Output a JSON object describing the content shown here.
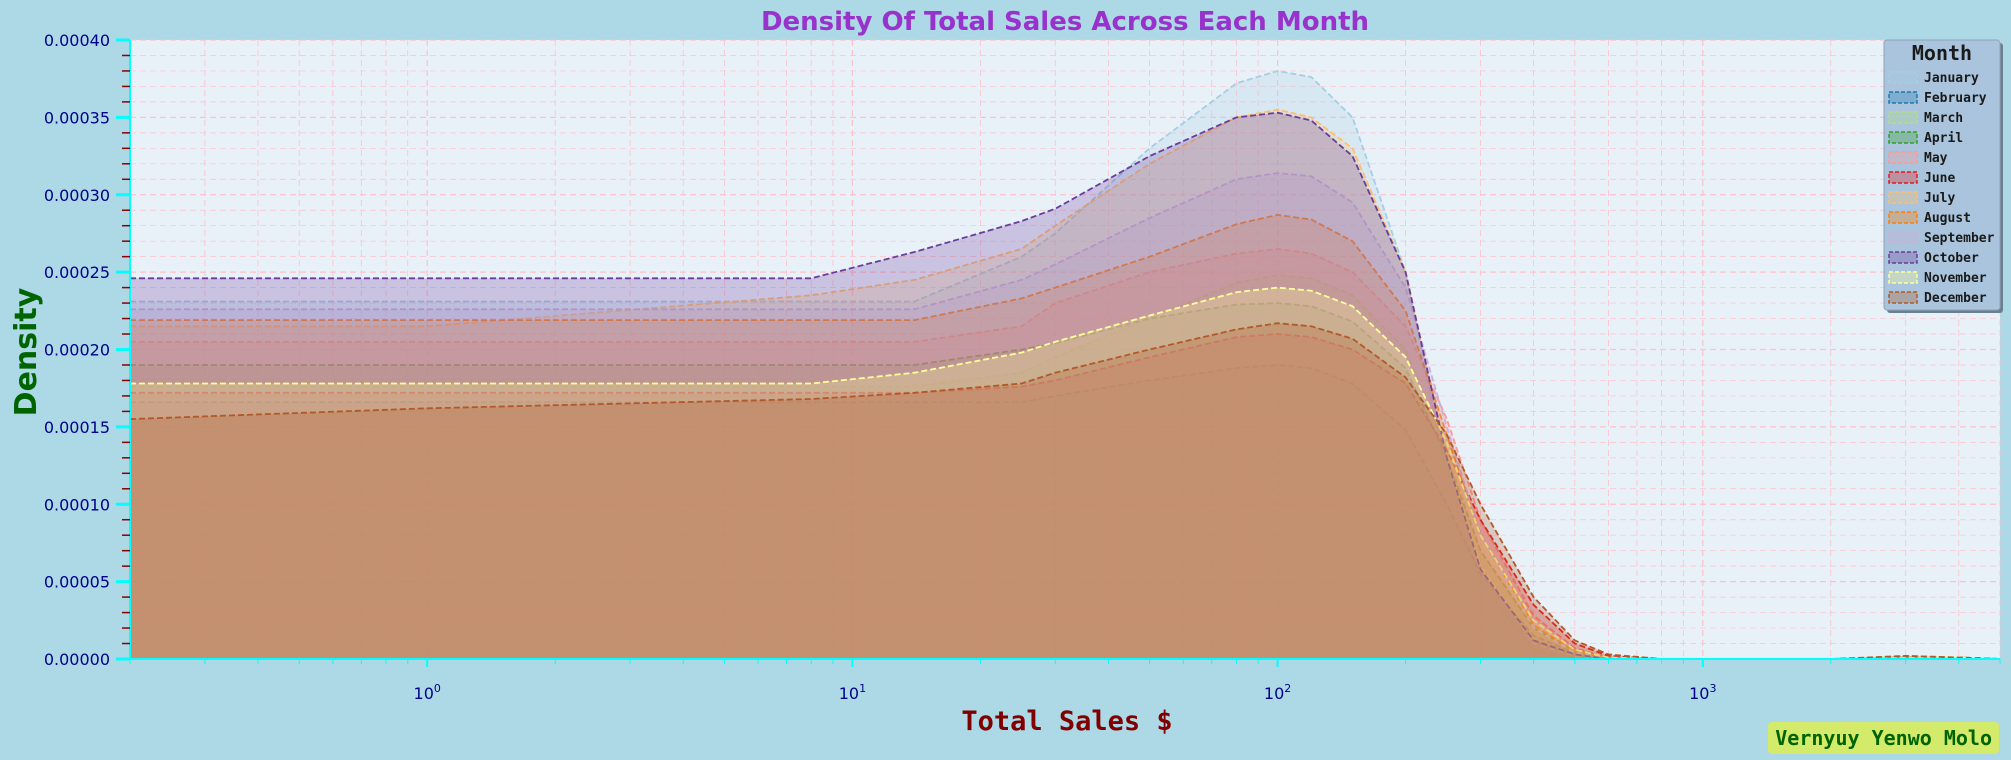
{
  "chart_data": {
    "type": "area",
    "title": "Density Of Total Sales Across Each Month",
    "xlabel": "Total Sales $",
    "ylabel": "Density",
    "x_scale": "log",
    "xlim": [
      0.2,
      5000
    ],
    "ylim": [
      0,
      0.0004
    ],
    "yticks": [
      "0.00000",
      "0.00005",
      "0.00010",
      "0.00015",
      "0.00020",
      "0.00025",
      "0.00030",
      "0.00035",
      "0.00040"
    ],
    "yticks_values": [
      0,
      5e-05,
      0.0001,
      0.00015,
      0.0002,
      0.00025,
      0.0003,
      0.00035,
      0.0004
    ],
    "xticks": [
      {
        "value": 1,
        "base": "10",
        "exp": "0"
      },
      {
        "value": 10,
        "base": "10",
        "exp": "1"
      },
      {
        "value": 100,
        "base": "10",
        "exp": "2"
      },
      {
        "value": 1000,
        "base": "10",
        "exp": "3"
      }
    ],
    "grid": true,
    "legend": {
      "title": "Month",
      "placement": "top-right"
    },
    "x": [
      0.2,
      1,
      8,
      14,
      25,
      30,
      50,
      80,
      100,
      120,
      150,
      200,
      250,
      300,
      400,
      500,
      600,
      800,
      1000,
      2000,
      3000,
      4000,
      5000
    ],
    "series": [
      {
        "name": "January",
        "color": "#a6cee3",
        "values": [
          0.000231,
          0.000231,
          0.000231,
          0.000231,
          0.00026,
          0.000275,
          0.00033,
          0.000372,
          0.00038,
          0.000376,
          0.00035,
          0.00025,
          0.00012,
          5e-05,
          5e-06,
          1e-06,
          0.0,
          0.0,
          0.0,
          0.0,
          1e-06,
          0.0,
          0.0
        ]
      },
      {
        "name": "February",
        "color": "#1f78b4",
        "values": [
          0.000166,
          0.000166,
          0.000166,
          0.000166,
          0.000166,
          0.00017,
          0.00018,
          0.000188,
          0.00019,
          0.000188,
          0.000178,
          0.000148,
          0.0001,
          5.5e-05,
          1.5e-05,
          4e-06,
          1e-06,
          0.0,
          0.0,
          0.0,
          1e-06,
          1e-06,
          0.0
        ]
      },
      {
        "name": "March",
        "color": "#b2df8a",
        "values": [
          0.000176,
          0.000176,
          0.000176,
          0.000176,
          0.000185,
          0.000195,
          0.00022,
          0.000243,
          0.000248,
          0.000246,
          0.000235,
          0.0002,
          0.000135,
          7e-05,
          2e-05,
          5e-06,
          1e-06,
          0.0,
          0.0,
          0.0,
          2e-06,
          1e-06,
          0.0
        ]
      },
      {
        "name": "April",
        "color": "#33a02c",
        "values": [
          0.00019,
          0.00019,
          0.00019,
          0.00019,
          0.0002,
          0.000204,
          0.00022,
          0.000229,
          0.00023,
          0.000228,
          0.000218,
          0.000188,
          0.00013,
          7e-05,
          2e-05,
          5e-06,
          1e-06,
          0.0,
          0.0,
          0.0,
          1e-06,
          1e-06,
          0.0
        ]
      },
      {
        "name": "May",
        "color": "#fb9a99",
        "values": [
          0.000205,
          0.000205,
          0.000205,
          0.000205,
          0.000215,
          0.00023,
          0.00025,
          0.000262,
          0.000265,
          0.000262,
          0.00025,
          0.000215,
          0.000155,
          9e-05,
          2.8e-05,
          7e-06,
          1e-06,
          0.0,
          0.0,
          0.0,
          1e-06,
          1e-06,
          0.0
        ]
      },
      {
        "name": "June",
        "color": "#e31a1c",
        "values": [
          0.000172,
          0.000172,
          0.000172,
          0.000172,
          0.000176,
          0.00018,
          0.000195,
          0.000208,
          0.00021,
          0.000208,
          0.0002,
          0.000178,
          0.000135,
          9e-05,
          3.5e-05,
          1e-05,
          2e-06,
          0.0,
          0.0,
          0.0,
          1e-06,
          1e-06,
          0.0
        ]
      },
      {
        "name": "July",
        "color": "#fdbf6f",
        "values": [
          0.000215,
          0.000215,
          0.000235,
          0.000245,
          0.000265,
          0.00028,
          0.00032,
          0.00035,
          0.000355,
          0.00035,
          0.00033,
          0.00025,
          0.00013,
          6e-05,
          1e-05,
          2e-06,
          0.0,
          0.0,
          0.0,
          0.0,
          1e-06,
          0.0,
          0.0
        ]
      },
      {
        "name": "August",
        "color": "#ff7f00",
        "values": [
          0.000219,
          0.000219,
          0.000219,
          0.000219,
          0.000233,
          0.00024,
          0.00026,
          0.000281,
          0.000287,
          0.000284,
          0.00027,
          0.000225,
          0.000145,
          8e-05,
          2.2e-05,
          5e-06,
          1e-06,
          0.0,
          0.0,
          0.0,
          1e-06,
          1e-06,
          0.0
        ]
      },
      {
        "name": "September",
        "color": "#cab2d6",
        "values": [
          0.000226,
          0.000226,
          0.000226,
          0.000226,
          0.000245,
          0.000255,
          0.000285,
          0.00031,
          0.000314,
          0.000312,
          0.000295,
          0.00024,
          0.00015,
          8e-05,
          2e-05,
          4e-06,
          1e-06,
          0.0,
          0.0,
          0.0,
          1e-06,
          1e-06,
          0.0
        ]
      },
      {
        "name": "October",
        "color": "#6a3d9a",
        "values": [
          0.000246,
          0.000246,
          0.000246,
          0.000263,
          0.000283,
          0.000291,
          0.000325,
          0.00035,
          0.000353,
          0.000348,
          0.000325,
          0.00025,
          0.00013,
          5.8e-05,
          1.2e-05,
          3e-06,
          0.0,
          0.0,
          0.0,
          0.0,
          1e-06,
          0.0,
          0.0
        ]
      },
      {
        "name": "November",
        "color": "#ffff99",
        "values": [
          0.000178,
          0.000178,
          0.000178,
          0.000185,
          0.000198,
          0.000205,
          0.000222,
          0.000237,
          0.00024,
          0.000238,
          0.000228,
          0.000195,
          0.00014,
          8e-05,
          2.5e-05,
          6e-06,
          1e-06,
          0.0,
          0.0,
          0.0,
          1e-06,
          1e-06,
          0.0
        ]
      },
      {
        "name": "December",
        "color": "#b15928",
        "values": [
          0.000155,
          0.000162,
          0.000168,
          0.000172,
          0.000178,
          0.000185,
          0.0002,
          0.000213,
          0.000217,
          0.000215,
          0.000207,
          0.000182,
          0.000145,
          0.0001,
          4e-05,
          1.2e-05,
          3e-06,
          0.0,
          0.0,
          0.0,
          2e-06,
          1e-06,
          0.0
        ]
      }
    ],
    "colors": {
      "plot_bg": "#e8f0f8",
      "figure_bg": "#add8e6",
      "grid": "#ffc0cb",
      "axis_spine": "#00ffff",
      "overlap_fill": "#96a696",
      "legend_bg": "#a9c4dc"
    }
  },
  "watermark": "Vernyuy Yenwo Molo"
}
